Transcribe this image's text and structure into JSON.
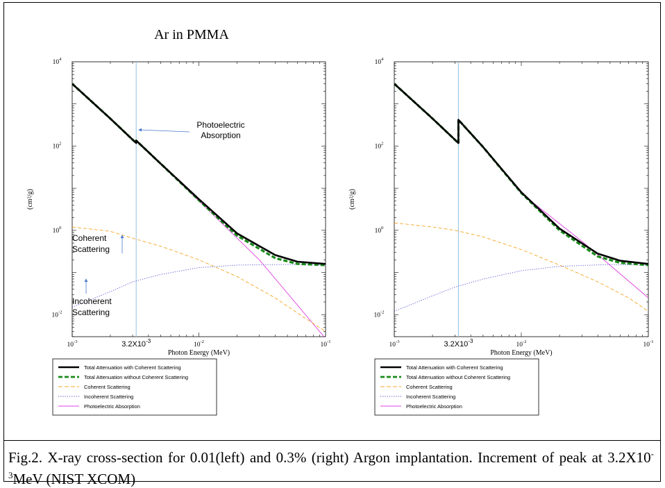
{
  "caption": {
    "text": "Fig.2. X-ray cross-section for 0.01(left) and 0.3% (right) Argon implantation. Increment of peak at 3.2X10",
    "sup": "-3",
    "tail": "MeV (NIST XCOM)"
  },
  "legend": [
    {
      "label": "Total Attenuation with Coherent Scattering",
      "color": "#000000",
      "dash": "solid"
    },
    {
      "label": "Total Attenuation without Coherent Scattering",
      "color": "#1a8a1a",
      "dash": "dashed"
    },
    {
      "label": "Coherent Scattering",
      "color": "#f5a623",
      "dash": "dashed"
    },
    {
      "label": "Incoherent Scattering",
      "color": "#4a4ad0",
      "dash": "dotted"
    },
    {
      "label": "Photoelectric Absorption",
      "color": "#e040e0",
      "dash": "solid"
    }
  ],
  "chart_data": [
    {
      "type": "line",
      "title": "Ar in PMMA",
      "xlabel": "Photon Energy (MeV)",
      "ylabel": "(cm²/g)",
      "x_scale": "log",
      "y_scale": "log",
      "xlim": [
        0.001,
        0.1
      ],
      "ylim": [
        0.003,
        10000
      ],
      "x_ticks": [
        {
          "base": "10",
          "exp": "-3"
        },
        {
          "base": "10",
          "exp": "-2"
        },
        {
          "base": "10",
          "exp": "-1"
        }
      ],
      "y_ticks": [
        {
          "base": "10",
          "exp": "4"
        },
        {
          "base": "10",
          "exp": "2"
        },
        {
          "base": "10",
          "exp": "0"
        },
        {
          "base": "10",
          "exp": "-2"
        }
      ],
      "marker_line_x": 0.0032,
      "marker_label": {
        "base": "3.2X10",
        "exp": "-3"
      },
      "annotations": [
        "Photoelectric Absorption",
        "Coherent Scattering",
        "Incoherent Scattering"
      ],
      "series": [
        {
          "name": "Total Attenuation with Coherent Scattering",
          "x": [
            0.001,
            0.002,
            0.0032,
            0.0032,
            0.005,
            0.01,
            0.02,
            0.04,
            0.06,
            0.1
          ],
          "y": [
            3000,
            450,
            118,
            135,
            38,
            5.5,
            0.85,
            0.26,
            0.18,
            0.16
          ]
        },
        {
          "name": "Total Attenuation without Coherent Scattering",
          "x": [
            0.001,
            0.002,
            0.0032,
            0.0032,
            0.005,
            0.01,
            0.02,
            0.04,
            0.06,
            0.1
          ],
          "y": [
            3000,
            450,
            118,
            135,
            38,
            5.2,
            0.75,
            0.22,
            0.16,
            0.15
          ]
        },
        {
          "name": "Coherent Scattering",
          "x": [
            0.001,
            0.002,
            0.003,
            0.005,
            0.01,
            0.02,
            0.04,
            0.07,
            0.1
          ],
          "y": [
            1.2,
            0.95,
            0.65,
            0.42,
            0.2,
            0.08,
            0.025,
            0.008,
            0.004
          ]
        },
        {
          "name": "Incoherent Scattering",
          "x": [
            0.001,
            0.002,
            0.003,
            0.005,
            0.01,
            0.02,
            0.05,
            0.1
          ],
          "y": [
            0.015,
            0.035,
            0.06,
            0.09,
            0.13,
            0.15,
            0.155,
            0.15
          ]
        },
        {
          "name": "Photoelectric Absorption",
          "x": [
            0.001,
            0.002,
            0.0032,
            0.0032,
            0.005,
            0.01,
            0.03,
            0.1
          ],
          "y": [
            3000,
            450,
            118,
            135,
            38,
            5.0,
            0.2,
            0.0027
          ]
        }
      ]
    },
    {
      "type": "line",
      "title": "",
      "xlabel": "Photon Energy (MeV)",
      "ylabel": "(cm²/g)",
      "x_scale": "log",
      "y_scale": "log",
      "xlim": [
        0.001,
        0.1
      ],
      "ylim": [
        0.003,
        10000
      ],
      "x_ticks": [
        {
          "base": "10",
          "exp": "-3"
        },
        {
          "base": "10",
          "exp": "-2"
        },
        {
          "base": "10",
          "exp": "-1"
        }
      ],
      "y_ticks": [
        {
          "base": "10",
          "exp": "4"
        },
        {
          "base": "10",
          "exp": "2"
        },
        {
          "base": "10",
          "exp": "0"
        },
        {
          "base": "10",
          "exp": "-2"
        }
      ],
      "marker_line_x": 0.0032,
      "marker_label": {
        "base": "3.2X10",
        "exp": "-3"
      },
      "annotations": [],
      "series": [
        {
          "name": "Total Attenuation with Coherent Scattering",
          "x": [
            0.001,
            0.002,
            0.0032,
            0.0032,
            0.005,
            0.01,
            0.02,
            0.04,
            0.06,
            0.1
          ],
          "y": [
            3000,
            450,
            118,
            420,
            95,
            8,
            1.1,
            0.28,
            0.19,
            0.16
          ]
        },
        {
          "name": "Total Attenuation without Coherent Scattering",
          "x": [
            0.001,
            0.002,
            0.0032,
            0.0032,
            0.005,
            0.01,
            0.02,
            0.04,
            0.06,
            0.1
          ],
          "y": [
            3000,
            450,
            118,
            420,
            95,
            7.7,
            1.0,
            0.24,
            0.17,
            0.15
          ]
        },
        {
          "name": "Coherent Scattering",
          "x": [
            0.001,
            0.002,
            0.003,
            0.005,
            0.01,
            0.02,
            0.04,
            0.07,
            0.1
          ],
          "y": [
            1.5,
            1.2,
            1.0,
            0.7,
            0.35,
            0.15,
            0.06,
            0.025,
            0.012
          ]
        },
        {
          "name": "Incoherent Scattering",
          "x": [
            0.001,
            0.002,
            0.003,
            0.005,
            0.01,
            0.02,
            0.05,
            0.1
          ],
          "y": [
            0.012,
            0.028,
            0.045,
            0.07,
            0.11,
            0.14,
            0.155,
            0.15
          ]
        },
        {
          "name": "Photoelectric Absorption",
          "x": [
            0.001,
            0.002,
            0.0032,
            0.0032,
            0.005,
            0.01,
            0.03,
            0.1
          ],
          "y": [
            3000,
            450,
            118,
            420,
            95,
            7.5,
            0.55,
            0.025
          ]
        }
      ]
    }
  ]
}
